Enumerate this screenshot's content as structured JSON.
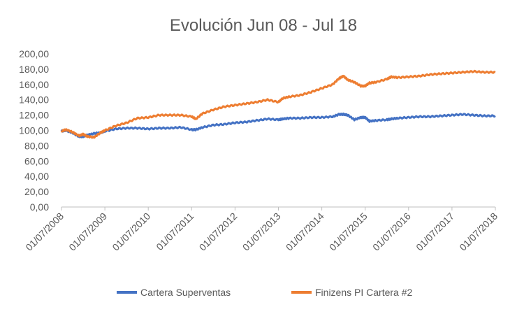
{
  "chart_data": {
    "type": "line",
    "title": "Evolución Jun 08 - Jul 18",
    "xlabel": "",
    "ylabel": "",
    "ylim": [
      0,
      200
    ],
    "grid": false,
    "legend_position": "bottom",
    "y_ticks": [
      "0,00",
      "20,00",
      "40,00",
      "60,00",
      "80,00",
      "100,00",
      "120,00",
      "140,00",
      "160,00",
      "180,00",
      "200,00"
    ],
    "x_ticks": [
      "01/07/2008",
      "01/07/2009",
      "01/07/2010",
      "01/07/2011",
      "01/07/2012",
      "01/07/2013",
      "01/07/2014",
      "01/07/2015",
      "01/07/2016",
      "01/07/2017",
      "01/07/2018"
    ],
    "x": [
      2008.5,
      2008.6,
      2008.75,
      2008.9,
      2009.0,
      2009.1,
      2009.25,
      2009.4,
      2009.5,
      2009.75,
      2010.0,
      2010.25,
      2010.5,
      2010.75,
      2011.0,
      2011.25,
      2011.5,
      2011.6,
      2011.75,
      2012.0,
      2012.25,
      2012.5,
      2012.75,
      2013.0,
      2013.25,
      2013.5,
      2013.6,
      2013.75,
      2014.0,
      2014.25,
      2014.5,
      2014.75,
      2014.9,
      2015.0,
      2015.1,
      2015.25,
      2015.4,
      2015.5,
      2015.6,
      2015.75,
      2016.0,
      2016.1,
      2016.25,
      2016.5,
      2016.75,
      2017.0,
      2017.25,
      2017.5,
      2017.75,
      2018.0,
      2018.25,
      2018.5
    ],
    "series": [
      {
        "name": "Cartera Superventas",
        "color": "#4472c4",
        "values": [
          99,
          100,
          97,
          92,
          92,
          94,
          96,
          97,
          99,
          102,
          103,
          103,
          102,
          103,
          103,
          104,
          101,
          101,
          104,
          107,
          108,
          110,
          111,
          113,
          115,
          114,
          115,
          116,
          116,
          117,
          117,
          118,
          121,
          121,
          120,
          114,
          117,
          117,
          112,
          113,
          114,
          115,
          116,
          117,
          118,
          118,
          119,
          120,
          121,
          120,
          119,
          119
        ]
      },
      {
        "name": "Finizens PI Cartera #2",
        "color": "#ed7d31",
        "values": [
          99,
          101,
          98,
          93,
          95,
          92,
          91,
          97,
          100,
          106,
          110,
          116,
          117,
          120,
          120,
          120,
          118,
          115,
          122,
          127,
          131,
          133,
          135,
          137,
          140,
          137,
          142,
          144,
          146,
          150,
          155,
          160,
          168,
          171,
          166,
          163,
          158,
          158,
          162,
          163,
          167,
          170,
          169,
          170,
          171,
          173,
          174,
          175,
          176,
          177,
          176,
          176
        ]
      }
    ]
  }
}
